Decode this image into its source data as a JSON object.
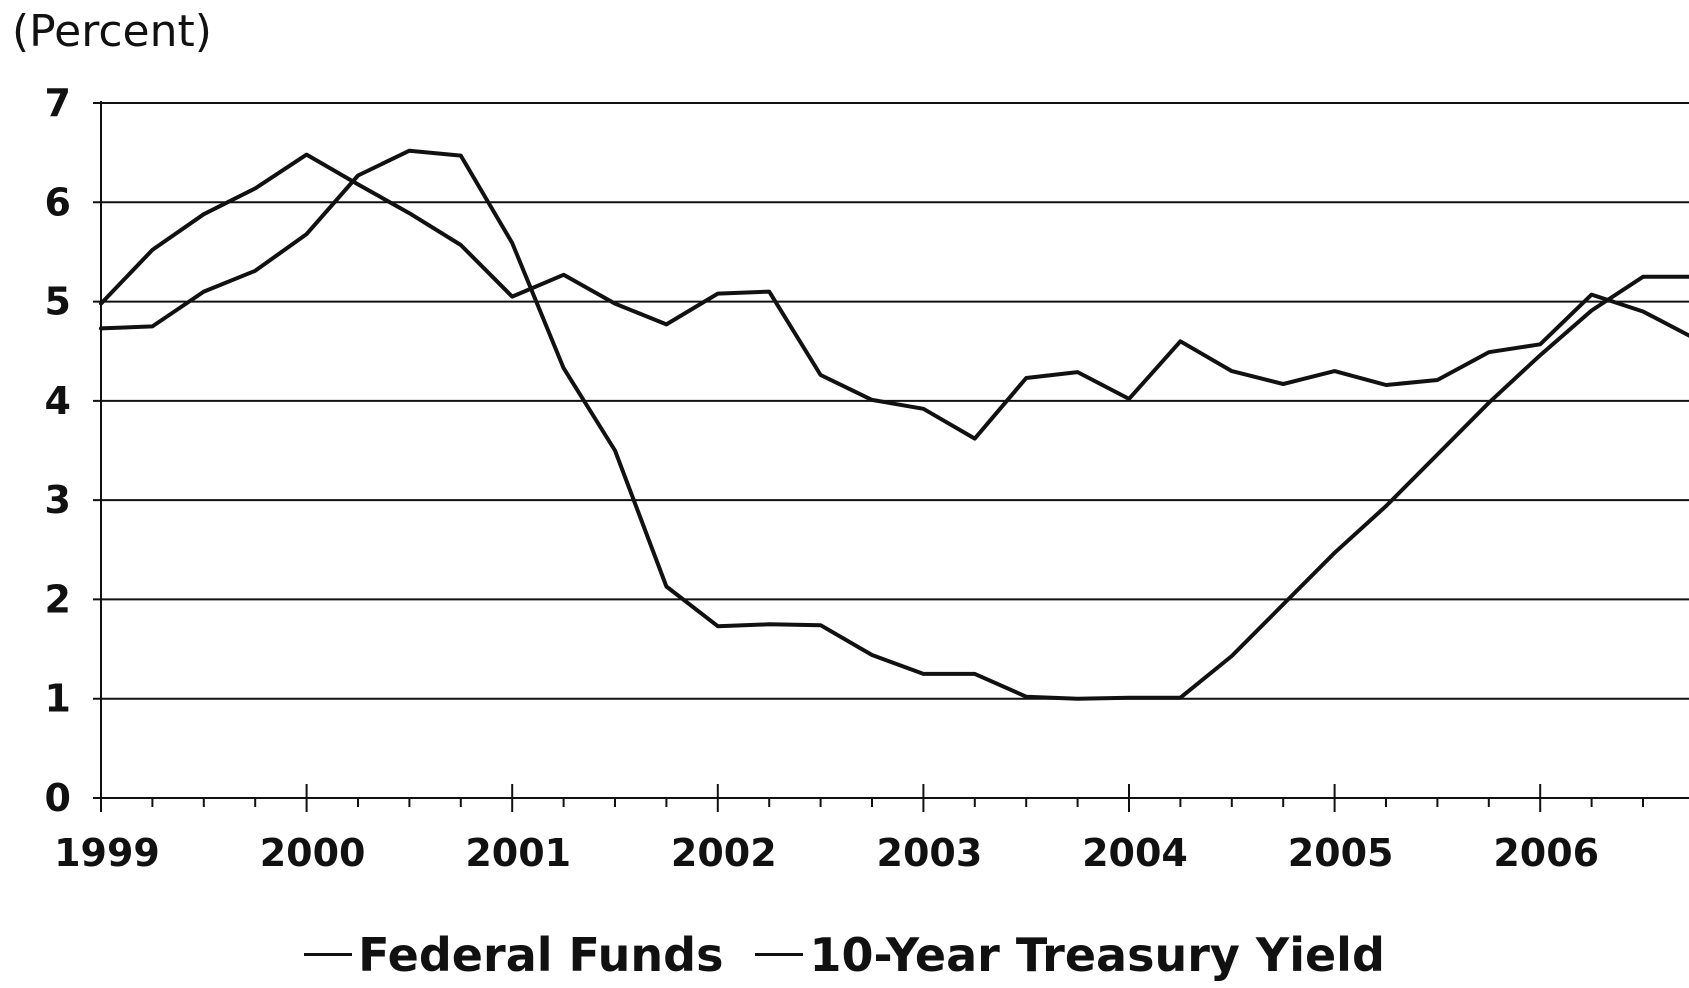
{
  "chart_data": {
    "type": "line",
    "title": "",
    "ylabel": "(Percent)",
    "xlabel": "",
    "ylim": [
      0,
      7
    ],
    "xlim": [
      1999,
      2006.9
    ],
    "yticks": [
      "0",
      "1",
      "2",
      "3",
      "4",
      "5",
      "6",
      "7"
    ],
    "xticks": [
      "1999",
      "2000",
      "2001",
      "2002",
      "2003",
      "2004",
      "2005",
      "2006"
    ],
    "grid": "horizontal",
    "legend_position": "bottom",
    "series": [
      {
        "name": "Federal Funds",
        "color": "#111111",
        "points": [
          [
            1999.0,
            4.73
          ],
          [
            1999.25,
            4.75
          ],
          [
            1999.5,
            5.1
          ],
          [
            1999.75,
            5.31
          ],
          [
            2000.0,
            5.68
          ],
          [
            2000.25,
            6.27
          ],
          [
            2000.5,
            6.52
          ],
          [
            2000.75,
            6.47
          ],
          [
            2001.0,
            5.59
          ],
          [
            2001.25,
            4.33
          ],
          [
            2001.5,
            3.5
          ],
          [
            2001.75,
            2.13
          ],
          [
            2002.0,
            1.73
          ],
          [
            2002.25,
            1.75
          ],
          [
            2002.5,
            1.74
          ],
          [
            2002.75,
            1.44
          ],
          [
            2003.0,
            1.25
          ],
          [
            2003.25,
            1.25
          ],
          [
            2003.5,
            1.02
          ],
          [
            2003.75,
            1.0
          ],
          [
            2004.0,
            1.01
          ],
          [
            2004.25,
            1.01
          ],
          [
            2004.5,
            1.43
          ],
          [
            2004.75,
            1.95
          ],
          [
            2005.0,
            2.47
          ],
          [
            2005.25,
            2.94
          ],
          [
            2005.5,
            3.46
          ],
          [
            2005.75,
            3.98
          ],
          [
            2006.0,
            4.46
          ],
          [
            2006.25,
            4.91
          ],
          [
            2006.5,
            5.25
          ],
          [
            2006.75,
            5.25
          ],
          [
            2006.9,
            5.25
          ]
        ]
      },
      {
        "name": "10-Year Treasury Yield",
        "color": "#111111",
        "points": [
          [
            1999.0,
            4.98
          ],
          [
            1999.25,
            5.52
          ],
          [
            1999.5,
            5.88
          ],
          [
            1999.75,
            6.14
          ],
          [
            2000.0,
            6.48
          ],
          [
            2000.25,
            6.18
          ],
          [
            2000.5,
            5.89
          ],
          [
            2000.75,
            5.57
          ],
          [
            2001.0,
            5.05
          ],
          [
            2001.25,
            5.27
          ],
          [
            2001.5,
            4.98
          ],
          [
            2001.75,
            4.77
          ],
          [
            2002.0,
            5.08
          ],
          [
            2002.25,
            5.1
          ],
          [
            2002.5,
            4.26
          ],
          [
            2002.75,
            4.01
          ],
          [
            2003.0,
            3.92
          ],
          [
            2003.25,
            3.62
          ],
          [
            2003.5,
            4.23
          ],
          [
            2003.75,
            4.29
          ],
          [
            2004.0,
            4.02
          ],
          [
            2004.25,
            4.6
          ],
          [
            2004.5,
            4.3
          ],
          [
            2004.75,
            4.17
          ],
          [
            2005.0,
            4.3
          ],
          [
            2005.25,
            4.16
          ],
          [
            2005.5,
            4.21
          ],
          [
            2005.75,
            4.49
          ],
          [
            2006.0,
            4.57
          ],
          [
            2006.25,
            5.07
          ],
          [
            2006.5,
            4.9
          ],
          [
            2006.75,
            4.63
          ],
          [
            2006.9,
            4.56
          ]
        ]
      }
    ]
  }
}
